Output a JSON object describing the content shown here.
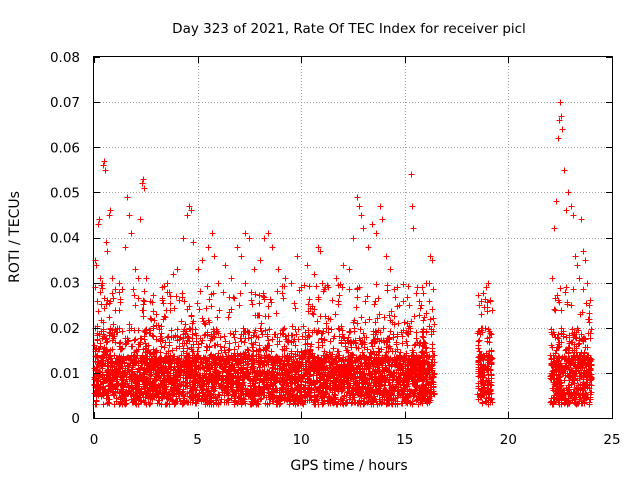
{
  "chart_data": {
    "type": "scatter",
    "title": "Day 323 of 2021, Rate Of TEC Index for receiver picl",
    "xlabel": "GPS time / hours",
    "ylabel": "ROTI / TECUs",
    "xlim": [
      0,
      25
    ],
    "ylim": [
      0,
      0.08
    ],
    "xticks": [
      0,
      5,
      10,
      15,
      20,
      25
    ],
    "xtick_labels": [
      "0",
      "5",
      "10",
      "15",
      "20",
      "25"
    ],
    "yticks": [
      0,
      0.01,
      0.02,
      0.03,
      0.04,
      0.05,
      0.06,
      0.07,
      0.08
    ],
    "ytick_labels": [
      "0",
      "0.01",
      "0.02",
      "0.03",
      "0.04",
      "0.05",
      "0.06",
      "0.07",
      "0.08"
    ],
    "grid": true,
    "marker": "plus",
    "marker_color": "#ff0000",
    "coverage_hours": [
      [
        0,
        16.4
      ],
      [
        18.5,
        19.2
      ],
      [
        22,
        24
      ]
    ],
    "series": [
      {
        "points": [
          [
            0.05,
            0.035
          ],
          [
            0.1,
            0.034
          ],
          [
            0.15,
            0.026
          ],
          [
            0.2,
            0.043
          ],
          [
            0.25,
            0.044
          ],
          [
            0.3,
            0.031
          ],
          [
            0.4,
            0.03
          ],
          [
            0.45,
            0.056
          ],
          [
            0.5,
            0.057
          ],
          [
            0.55,
            0.055
          ],
          [
            0.6,
            0.039
          ],
          [
            0.65,
            0.037
          ],
          [
            0.7,
            0.045
          ],
          [
            0.75,
            0.046
          ],
          [
            0.85,
            0.031
          ],
          [
            1.0,
            0.024
          ],
          [
            1.2,
            0.028
          ],
          [
            1.5,
            0.038
          ],
          [
            1.6,
            0.049
          ],
          [
            1.7,
            0.045
          ],
          [
            1.8,
            0.041
          ],
          [
            2.0,
            0.033
          ],
          [
            2.1,
            0.031
          ],
          [
            2.2,
            0.044
          ],
          [
            2.3,
            0.052
          ],
          [
            2.35,
            0.053
          ],
          [
            2.4,
            0.051
          ],
          [
            2.5,
            0.031
          ],
          [
            3.0,
            0.023
          ],
          [
            3.3,
            0.029
          ],
          [
            3.5,
            0.028
          ],
          [
            3.8,
            0.032
          ],
          [
            4.0,
            0.033
          ],
          [
            4.3,
            0.04
          ],
          [
            4.5,
            0.045
          ],
          [
            4.6,
            0.047
          ],
          [
            4.7,
            0.046
          ],
          [
            4.8,
            0.039
          ],
          [
            5.0,
            0.033
          ],
          [
            5.2,
            0.035
          ],
          [
            5.5,
            0.038
          ],
          [
            5.7,
            0.041
          ],
          [
            5.8,
            0.036
          ],
          [
            6.0,
            0.03
          ],
          [
            6.3,
            0.034
          ],
          [
            6.6,
            0.031
          ],
          [
            6.9,
            0.038
          ],
          [
            7.1,
            0.036
          ],
          [
            7.3,
            0.041
          ],
          [
            7.5,
            0.04
          ],
          [
            7.7,
            0.033
          ],
          [
            8.0,
            0.035
          ],
          [
            8.2,
            0.04
          ],
          [
            8.4,
            0.041
          ],
          [
            8.6,
            0.038
          ],
          [
            8.9,
            0.033
          ],
          [
            9.2,
            0.031
          ],
          [
            9.5,
            0.03
          ],
          [
            9.8,
            0.036
          ],
          [
            10.0,
            0.029
          ],
          [
            10.3,
            0.034
          ],
          [
            10.6,
            0.032
          ],
          [
            10.8,
            0.038
          ],
          [
            10.9,
            0.037
          ],
          [
            11.0,
            0.03
          ],
          [
            11.3,
            0.029
          ],
          [
            11.7,
            0.031
          ],
          [
            12.0,
            0.034
          ],
          [
            12.3,
            0.033
          ],
          [
            12.5,
            0.04
          ],
          [
            12.7,
            0.049
          ],
          [
            12.8,
            0.047
          ],
          [
            12.9,
            0.045
          ],
          [
            13.0,
            0.042
          ],
          [
            13.2,
            0.038
          ],
          [
            13.4,
            0.043
          ],
          [
            13.6,
            0.041
          ],
          [
            13.8,
            0.047
          ],
          [
            13.9,
            0.044
          ],
          [
            14.1,
            0.036
          ],
          [
            14.3,
            0.033
          ],
          [
            14.6,
            0.029
          ],
          [
            14.9,
            0.026
          ],
          [
            15.1,
            0.021
          ],
          [
            15.3,
            0.054
          ],
          [
            15.35,
            0.047
          ],
          [
            15.4,
            0.042
          ],
          [
            15.6,
            0.029
          ],
          [
            15.9,
            0.016
          ],
          [
            16.2,
            0.036
          ],
          [
            16.3,
            0.035
          ],
          [
            16.4,
            0.014
          ],
          [
            18.6,
            0.025
          ],
          [
            18.7,
            0.023
          ],
          [
            18.9,
            0.029
          ],
          [
            19.0,
            0.03
          ],
          [
            19.1,
            0.026
          ],
          [
            22.1,
            0.031
          ],
          [
            22.2,
            0.042
          ],
          [
            22.3,
            0.048
          ],
          [
            22.4,
            0.062
          ],
          [
            22.45,
            0.066
          ],
          [
            22.5,
            0.07
          ],
          [
            22.55,
            0.067
          ],
          [
            22.6,
            0.064
          ],
          [
            22.7,
            0.055
          ],
          [
            22.8,
            0.046
          ],
          [
            22.9,
            0.05
          ],
          [
            23.0,
            0.047
          ],
          [
            23.1,
            0.045
          ],
          [
            23.2,
            0.036
          ],
          [
            23.3,
            0.034
          ],
          [
            23.4,
            0.031
          ],
          [
            23.5,
            0.044
          ],
          [
            23.6,
            0.037
          ],
          [
            23.7,
            0.035
          ],
          [
            23.8,
            0.03
          ],
          [
            23.9,
            0.025
          ]
        ]
      }
    ]
  }
}
